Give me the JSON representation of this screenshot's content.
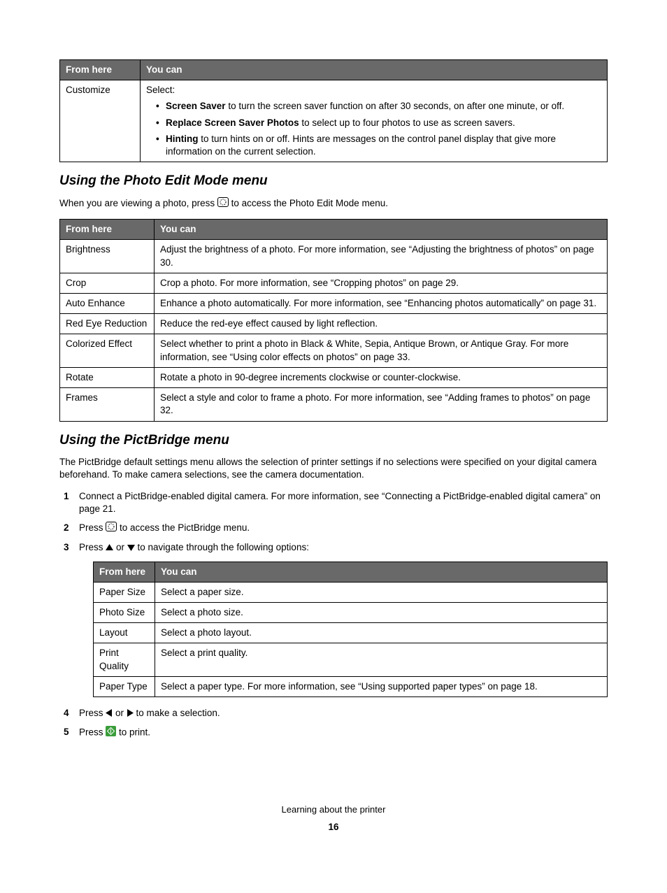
{
  "table1": {
    "header": [
      "From here",
      "You can"
    ],
    "row": {
      "label": "Customize",
      "intro": "Select:",
      "items": [
        {
          "bold": "Screen Saver",
          "rest": " to turn the screen saver function on after 30 seconds, on after one minute, or off."
        },
        {
          "bold": "Replace Screen Saver Photos",
          "rest": " to select up to four photos to use as screen savers."
        },
        {
          "bold": "Hinting",
          "rest": " to turn hints on or off. Hints are messages on the control panel display that give more information on the current selection."
        }
      ]
    }
  },
  "section1": {
    "heading": "Using the Photo Edit Mode menu",
    "intro_pre": "When you are viewing a photo, press ",
    "intro_post": " to access the Photo Edit Mode menu.",
    "table": {
      "header": [
        "From here",
        "You can"
      ],
      "rows": [
        [
          "Brightness",
          "Adjust the brightness of a photo. For more information, see “Adjusting the brightness of photos” on page 30."
        ],
        [
          "Crop",
          "Crop a photo. For more information, see “Cropping photos” on page 29."
        ],
        [
          "Auto Enhance",
          "Enhance a photo automatically. For more information, see “Enhancing photos automatically” on page 31."
        ],
        [
          "Red Eye Reduction",
          "Reduce the red-eye effect caused by light reflection."
        ],
        [
          "Colorized Effect",
          "Select whether to print a photo in Black & White, Sepia, Antique Brown, or Antique Gray. For more information, see “Using color effects on photos” on page 33."
        ],
        [
          "Rotate",
          "Rotate a photo in 90-degree increments clockwise or counter-clockwise."
        ],
        [
          "Frames",
          "Select a style and color to frame a photo. For more information, see “Adding frames to photos” on page 32."
        ]
      ]
    }
  },
  "section2": {
    "heading": "Using the PictBridge menu",
    "intro": "The PictBridge default settings menu allows the selection of printer settings if no selections were specified on your digital camera beforehand. To make camera selections, see the camera documentation.",
    "steps": {
      "s1": "Connect a PictBridge-enabled digital camera. For more information, see “Connecting a PictBridge-enabled digital camera” on page 21.",
      "s2_pre": "Press ",
      "s2_post": " to access the PictBridge menu.",
      "s3_pre": "Press ",
      "s3_mid": " or ",
      "s3_post": " to navigate through the following options:",
      "s4_pre": "Press ",
      "s4_mid": " or ",
      "s4_post": " to make a selection.",
      "s5_pre": "Press ",
      "s5_post": " to print."
    },
    "table": {
      "header": [
        "From here",
        "You can"
      ],
      "rows": [
        [
          "Paper Size",
          "Select a paper size."
        ],
        [
          "Photo Size",
          "Select a photo size."
        ],
        [
          "Layout",
          "Select a photo layout."
        ],
        [
          "Print Quality",
          "Select a print quality."
        ],
        [
          "Paper Type",
          "Select a paper type. For more information, see “Using supported paper types” on page 18."
        ]
      ]
    }
  },
  "footer": {
    "text": "Learning about the printer",
    "page": "16"
  },
  "icons": {
    "edit_icon_svg": "edit-mode-icon",
    "print_icon_svg": "print-icon"
  }
}
